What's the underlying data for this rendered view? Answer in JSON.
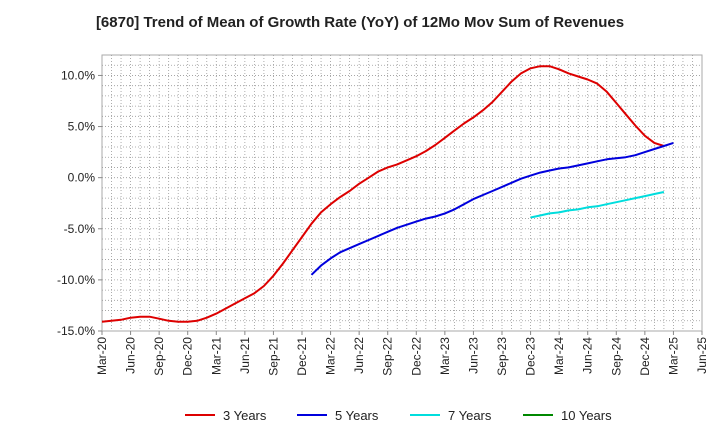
{
  "chart_data": {
    "type": "line",
    "title": "[6870]  Trend of Mean of Growth Rate (YoY) of 12Mo Mov Sum of Revenues",
    "xlabel": "",
    "ylabel": "",
    "ylim": [
      -15,
      12
    ],
    "yticks": [
      10,
      5,
      0,
      -5,
      -10,
      -15
    ],
    "ytick_labels": [
      "10.0%",
      "5.0%",
      "0.0%",
      "-5.0%",
      "-10.0%",
      "-15.0%"
    ],
    "x_start": "Mar-20",
    "x_end": "Jun-25",
    "xtick_labels": [
      "Mar-20",
      "Jun-20",
      "Sep-20",
      "Dec-20",
      "Mar-21",
      "Jun-21",
      "Sep-21",
      "Dec-21",
      "Mar-22",
      "Jun-22",
      "Sep-22",
      "Dec-22",
      "Mar-23",
      "Jun-23",
      "Sep-23",
      "Dec-23",
      "Mar-24",
      "Jun-24",
      "Sep-24",
      "Dec-24",
      "Mar-25",
      "Jun-25"
    ],
    "grid": true,
    "legend_position": "bottom",
    "series": [
      {
        "name": "3 Years",
        "color": "#dd0000",
        "start_index": 0,
        "values": [
          -14.1,
          -14.0,
          -13.9,
          -13.7,
          -13.6,
          -13.6,
          -13.8,
          -14.0,
          -14.1,
          -14.1,
          -14.0,
          -13.7,
          -13.3,
          -12.8,
          -12.3,
          -11.8,
          -11.3,
          -10.6,
          -9.6,
          -8.4,
          -7.1,
          -5.8,
          -4.5,
          -3.4,
          -2.6,
          -1.9,
          -1.3,
          -0.6,
          0.0,
          0.6,
          1.0,
          1.3,
          1.7,
          2.1,
          2.6,
          3.2,
          3.9,
          4.6,
          5.3,
          5.9,
          6.6,
          7.4,
          8.4,
          9.4,
          10.2,
          10.7,
          10.9,
          10.9,
          10.6,
          10.2,
          9.9,
          9.6,
          9.2,
          8.4,
          7.3,
          6.2,
          5.1,
          4.1,
          3.4,
          3.1
        ]
      },
      {
        "name": "5 Years",
        "color": "#0000dd",
        "start_index": 22,
        "values": [
          -9.5,
          -8.6,
          -7.9,
          -7.3,
          -6.9,
          -6.5,
          -6.1,
          -5.7,
          -5.3,
          -4.9,
          -4.6,
          -4.3,
          -4.0,
          -3.8,
          -3.5,
          -3.1,
          -2.6,
          -2.1,
          -1.7,
          -1.3,
          -0.9,
          -0.5,
          -0.1,
          0.2,
          0.5,
          0.7,
          0.9,
          1.0,
          1.2,
          1.4,
          1.6,
          1.8,
          1.9,
          2.0,
          2.2,
          2.5,
          2.8,
          3.1,
          3.4
        ]
      },
      {
        "name": "7 Years",
        "color": "#00dddd",
        "start_index": 45,
        "values": [
          -3.9,
          -3.7,
          -3.5,
          -3.4,
          -3.2,
          -3.1,
          -2.9,
          -2.8,
          -2.6,
          -2.4,
          -2.2,
          -2.0,
          -1.8,
          -1.6,
          -1.4
        ]
      },
      {
        "name": "10 Years",
        "color": "#008800",
        "start_index": 0,
        "values": []
      }
    ]
  }
}
